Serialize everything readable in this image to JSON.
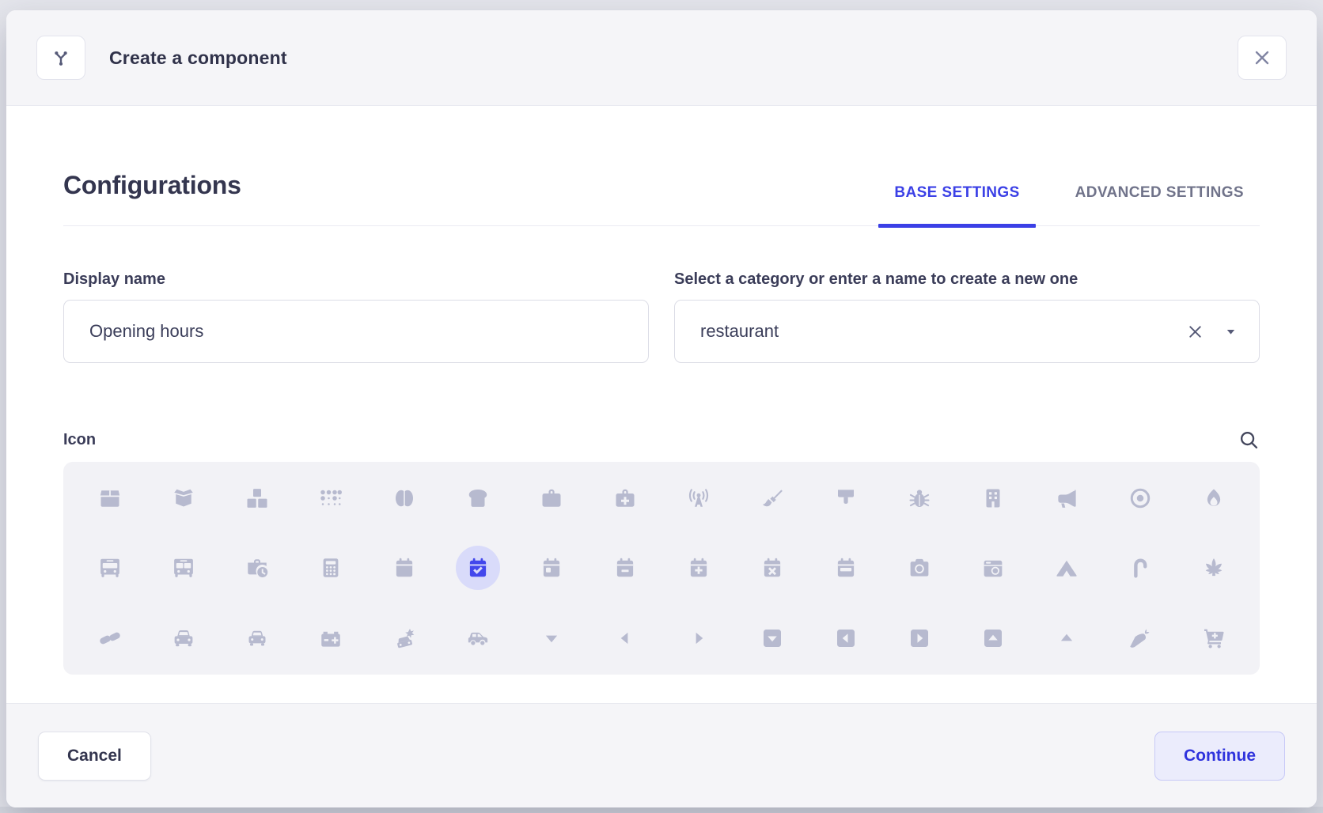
{
  "header": {
    "title": "Create a component",
    "icon": "component-branch-icon",
    "close_icon": "close-icon"
  },
  "section": {
    "title": "Configurations"
  },
  "tabs": [
    {
      "label": "BASE SETTINGS",
      "active": true
    },
    {
      "label": "ADVANCED SETTINGS",
      "active": false
    }
  ],
  "fields": {
    "display_name": {
      "label": "Display name",
      "value": "Opening hours"
    },
    "category": {
      "label": "Select a category or enter a name to create a new one",
      "value": "restaurant",
      "clear_icon": "clear-x-icon",
      "dropdown_icon": "caret-down-icon"
    }
  },
  "icon_picker": {
    "label": "Icon",
    "search_icon": "search-icon",
    "selected": "calendar-check",
    "rows": [
      [
        "box",
        "box-open",
        "boxes",
        "braille",
        "brain",
        "bread-slice",
        "briefcase",
        "briefcase-medical",
        "broadcast-tower",
        "broom",
        "brush",
        "bug",
        "building",
        "bullhorn",
        "bullseye",
        "burn"
      ],
      [
        "bus",
        "bus-alt",
        "business-time",
        "calculator",
        "calendar",
        "calendar-check",
        "calendar-day",
        "calendar-minus",
        "calendar-plus",
        "calendar-times",
        "calendar-week",
        "camera",
        "camera-retro",
        "campground",
        "candy-cane",
        "cannabis"
      ],
      [
        "capsules",
        "car",
        "car-alt",
        "car-battery",
        "car-crash",
        "car-side",
        "caret-down",
        "caret-left",
        "caret-right",
        "caret-square-down",
        "caret-square-left",
        "caret-square-right",
        "caret-square-up",
        "caret-up",
        "carrot",
        "cart-plus"
      ]
    ]
  },
  "footer": {
    "cancel_label": "Cancel",
    "continue_label": "Continue"
  },
  "colors": {
    "accent": "#3b40e6",
    "accent_text": "#2f33dd",
    "selected_icon": "#4247ec",
    "selected_bg": "#d9dbfa",
    "icon_gray": "#b7bacf",
    "panel_bg": "#f2f2f6",
    "header_bg": "#f5f5f8",
    "border": "#e8e9f0"
  }
}
